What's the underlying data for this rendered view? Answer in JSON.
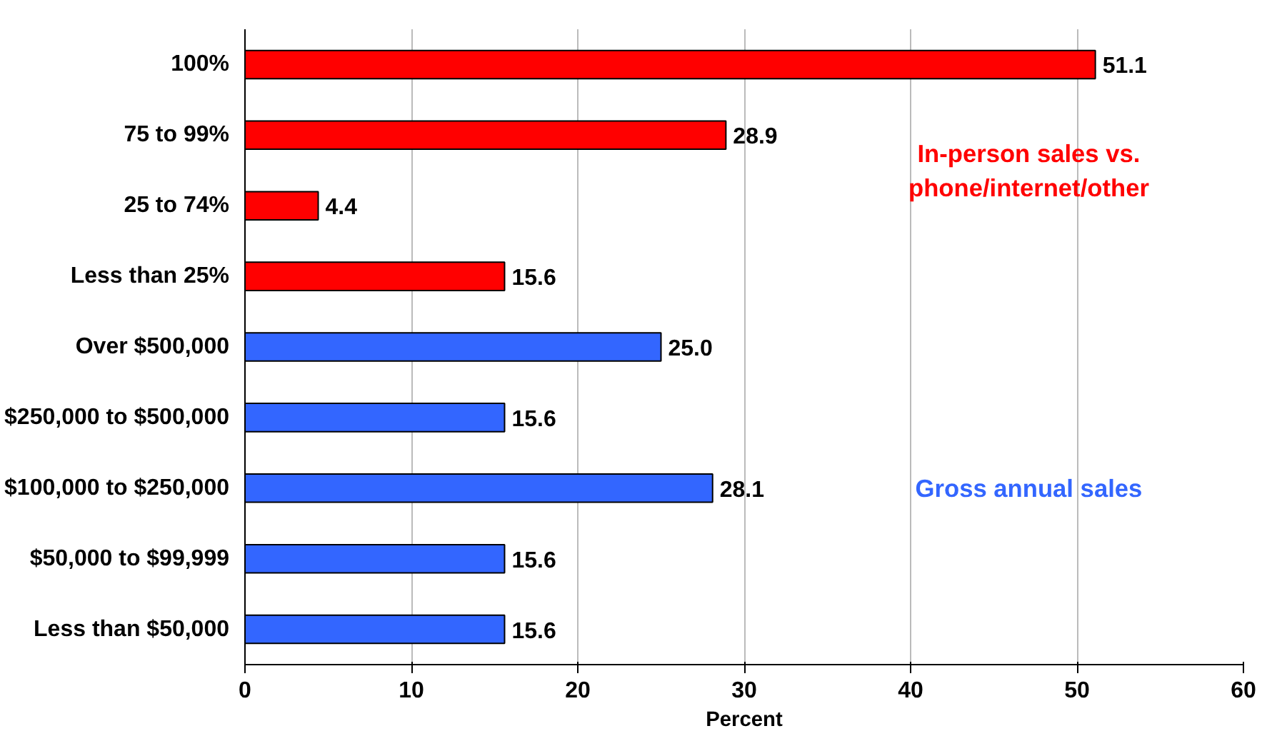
{
  "chart_data": {
    "type": "bar",
    "orientation": "horizontal",
    "xlabel": "Percent",
    "categories": [
      "100%",
      "75 to 99%",
      "25 to 74%",
      "Less than 25%",
      "Over $500,000",
      "$250,000 to $500,000",
      "$100,000 to $250,000",
      "$50,000 to $99,999",
      "Less than $50,000"
    ],
    "series": [
      {
        "name": "In-person sales vs. phone/internet/other",
        "color": "#ff0000",
        "values": [
          51.1,
          28.9,
          4.4,
          15.6,
          null,
          null,
          null,
          null,
          null
        ],
        "value_labels": [
          "51.1",
          "28.9",
          "4.4",
          "15.6",
          null,
          null,
          null,
          null,
          null
        ]
      },
      {
        "name": "Gross annual sales",
        "color": "#3366ff",
        "values": [
          null,
          null,
          null,
          null,
          25.0,
          15.6,
          28.1,
          15.6,
          15.6
        ],
        "value_labels": [
          null,
          null,
          null,
          null,
          "25.0",
          "15.6",
          "28.1",
          "15.6",
          "15.6"
        ]
      }
    ],
    "xlim": [
      0,
      60
    ],
    "xticks": [
      0,
      10,
      20,
      30,
      40,
      50,
      60
    ],
    "grid": "x"
  }
}
